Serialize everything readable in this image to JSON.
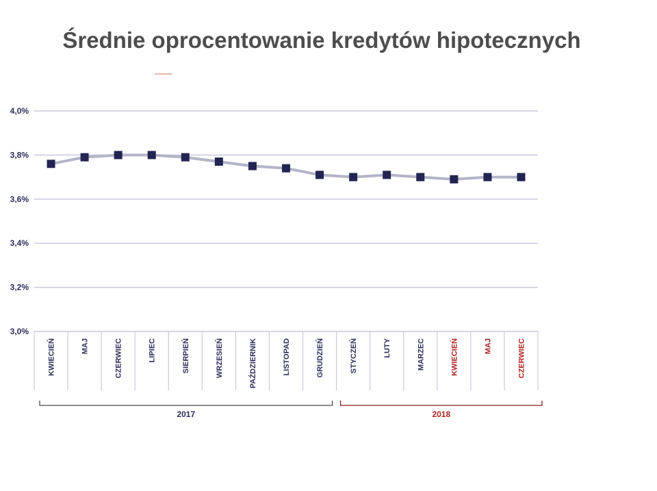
{
  "title": "Średnie oprocentowanie kredytów hipotecznych",
  "colors": {
    "title": "#4d4d4d",
    "axis_text": "#2d2f5a",
    "grid": "#c9c9e0",
    "line": "#b3b3c9",
    "marker": "#222552",
    "year_2017": "#4a4a4a",
    "year_2018_text": "#b22222",
    "year_2018_bracket": "#8b1a1a"
  },
  "chart_data": {
    "type": "line",
    "title": "Średnie oprocentowanie kredytów hipotecznych",
    "xlabel": "",
    "ylabel": "",
    "ylim": [
      3.0,
      4.0
    ],
    "yticks": [
      "3,0%",
      "3,2%",
      "3,4%",
      "3,6%",
      "3,8%",
      "4,0%"
    ],
    "ytick_values": [
      3.0,
      3.2,
      3.4,
      3.6,
      3.8,
      4.0
    ],
    "grid": true,
    "categories": [
      "KWIECIEŃ",
      "MAJ",
      "CZERWIEC",
      "LIPIEC",
      "SIERPIEŃ",
      "WRZESIEŃ",
      "PAŹDZIERNIK",
      "LISTOPAD",
      "GRUDZIEŃ",
      "STYCZEŃ",
      "LUTY",
      "MARZEC",
      "KWIECIEŃ",
      "MAJ",
      "CZERWIEC"
    ],
    "category_year": [
      "2017",
      "2017",
      "2017",
      "2017",
      "2017",
      "2017",
      "2017",
      "2017",
      "2017",
      "2018",
      "2018",
      "2018",
      "2018",
      "2018",
      "2018"
    ],
    "series": [
      {
        "values": [
          3.76,
          3.79,
          3.8,
          3.8,
          3.79,
          3.77,
          3.75,
          3.74,
          3.71,
          3.7,
          3.71,
          3.7,
          3.69,
          3.7,
          3.7
        ]
      }
    ],
    "year_groups": [
      {
        "label": "2017",
        "first": 0,
        "last": 8
      },
      {
        "label": "2018",
        "first": 9,
        "last": 14
      }
    ]
  }
}
